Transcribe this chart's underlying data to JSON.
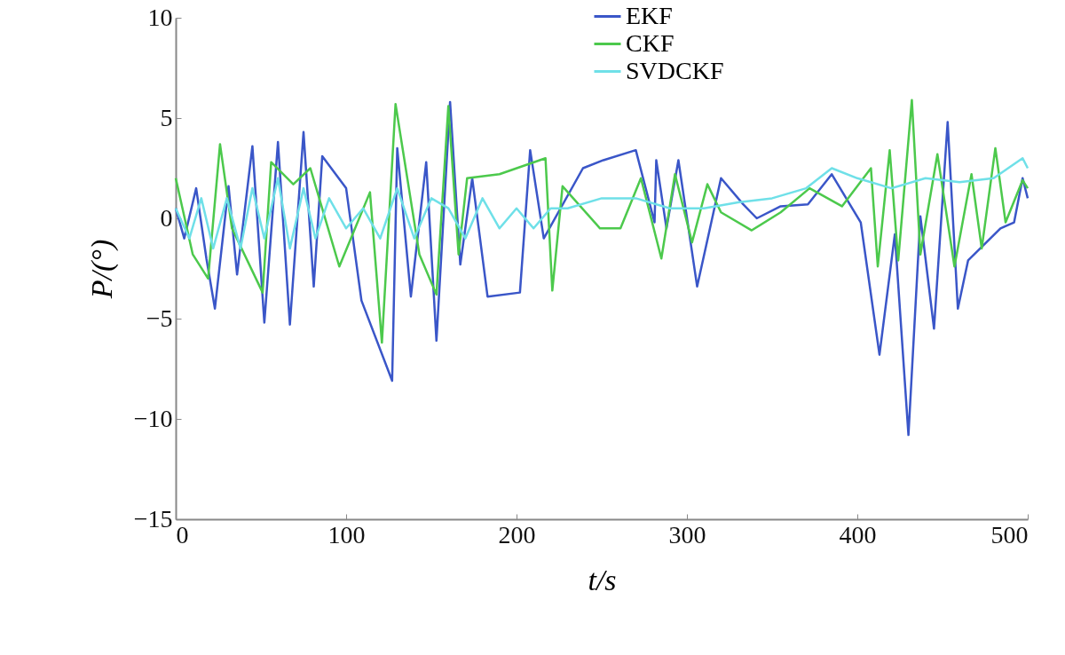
{
  "chart_data": {
    "type": "line",
    "xlabel": "t/s",
    "ylabel": "P/(°)",
    "xlim": [
      0,
      500
    ],
    "xticks": [
      0,
      100,
      200,
      300,
      400,
      500
    ],
    "ylim": [
      -15,
      10
    ],
    "yticks": [
      -15,
      -10,
      -5,
      0,
      5,
      10
    ],
    "grid": false,
    "legend": "top right",
    "marker": "none",
    "line_style": "solid",
    "series": [
      {
        "name": "EKF",
        "color": "#3a56c8",
        "x": [
          0,
          5,
          12,
          18,
          23,
          31,
          36,
          45,
          52,
          60,
          67,
          75,
          81,
          86,
          100,
          109,
          127,
          130,
          138,
          147,
          153,
          161,
          167,
          174,
          183,
          202,
          208,
          216,
          239,
          251,
          270,
          281,
          282,
          288,
          295,
          306,
          320,
          333,
          341,
          355,
          371,
          385,
          402,
          413,
          422,
          430,
          437,
          445,
          453,
          459,
          465,
          484,
          492,
          497,
          500
        ],
        "values": [
          0.5,
          -1,
          1.5,
          -2,
          -4.5,
          1.6,
          -2.8,
          3.6,
          -5.2,
          3.8,
          -5.3,
          4.3,
          -3.4,
          3.1,
          1.5,
          -4.1,
          -8.1,
          3.5,
          -3.9,
          2.8,
          -6.1,
          5.8,
          -2.3,
          2,
          -3.9,
          -3.7,
          3.4,
          -1,
          2.5,
          2.9,
          3.4,
          -0.2,
          2.9,
          -0.5,
          2.9,
          -3.4,
          2,
          0.7,
          0,
          0.6,
          0.7,
          2.2,
          -0.2,
          -6.8,
          -0.8,
          -10.8,
          0.1,
          -5.5,
          4.8,
          -4.5,
          -2.1,
          -0.5,
          -0.2,
          2,
          1
        ]
      },
      {
        "name": "CKF",
        "color": "#4cc94c",
        "x": [
          0,
          10,
          19,
          26,
          33,
          51,
          56,
          69,
          79,
          96,
          114,
          121,
          129,
          143,
          153,
          160,
          166,
          171,
          190,
          217,
          221,
          227,
          249,
          261,
          273,
          285,
          293,
          303,
          312,
          320,
          338,
          355,
          372,
          391,
          408,
          412,
          419,
          424,
          432,
          437,
          447,
          457,
          467,
          473,
          481,
          487,
          497,
          500
        ],
        "values": [
          2,
          -1.8,
          -3,
          3.7,
          -0.5,
          -3.7,
          2.8,
          1.7,
          2.5,
          -2.4,
          1.3,
          -6.2,
          5.7,
          -1.8,
          -3.8,
          5.6,
          -1.8,
          2,
          2.2,
          3,
          -3.6,
          1.6,
          -0.5,
          -0.5,
          2,
          -2,
          2.2,
          -1.2,
          1.7,
          0.3,
          -0.6,
          0.3,
          1.5,
          0.6,
          2.5,
          -2.4,
          3.4,
          -2.1,
          5.9,
          -1.8,
          3.2,
          -2.4,
          2.2,
          -1.5,
          3.5,
          -0.2,
          1.9,
          1.5
        ]
      },
      {
        "name": "SVDCKF",
        "color": "#6fe0e8",
        "x": [
          0,
          8,
          15,
          22,
          30,
          38,
          45,
          52,
          60,
          67,
          75,
          82,
          90,
          100,
          110,
          120,
          130,
          140,
          150,
          160,
          170,
          180,
          190,
          200,
          210,
          220,
          230,
          250,
          270,
          290,
          310,
          330,
          350,
          370,
          385,
          400,
          420,
          440,
          460,
          480,
          497,
          500
        ],
        "values": [
          0.5,
          -1,
          1,
          -1.5,
          1,
          -1.5,
          1.5,
          -1,
          2,
          -1.5,
          1.5,
          -1,
          1,
          -0.5,
          0.5,
          -1,
          1.5,
          -1,
          1,
          0.5,
          -1,
          1,
          -0.5,
          0.5,
          -0.5,
          0.5,
          0.5,
          1,
          1,
          0.5,
          0.5,
          0.8,
          1,
          1.5,
          2.5,
          2,
          1.5,
          2,
          1.8,
          2,
          3,
          2.5
        ]
      }
    ]
  }
}
